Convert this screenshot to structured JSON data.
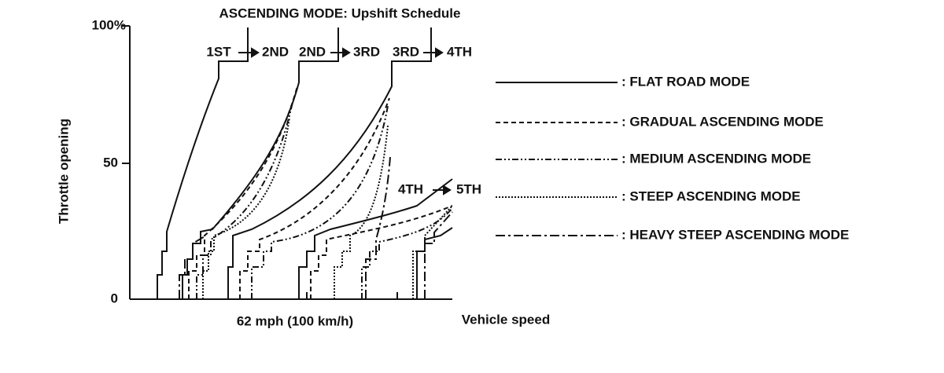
{
  "title": "ASCENDING MODE: Upshift Schedule",
  "y_axis": {
    "label": "Throttle opening",
    "ticks": [
      "100%",
      "50",
      "0"
    ]
  },
  "x_axis": {
    "label": "Vehicle speed",
    "tick": "62 mph (100 km/h)"
  },
  "shifts": [
    {
      "from": "1ST",
      "to": "2ND"
    },
    {
      "from": "2ND",
      "to": "3RD"
    },
    {
      "from": "3RD",
      "to": "4TH"
    },
    {
      "from": "4TH",
      "to": "5TH"
    }
  ],
  "legend": [
    ": FLAT ROAD MODE",
    ": GRADUAL ASCENDING MODE",
    ": MEDIUM ASCENDING MODE",
    ": STEEP ASCENDING MODE",
    ": HEAVY STEEP ASCENDING MODE"
  ]
}
